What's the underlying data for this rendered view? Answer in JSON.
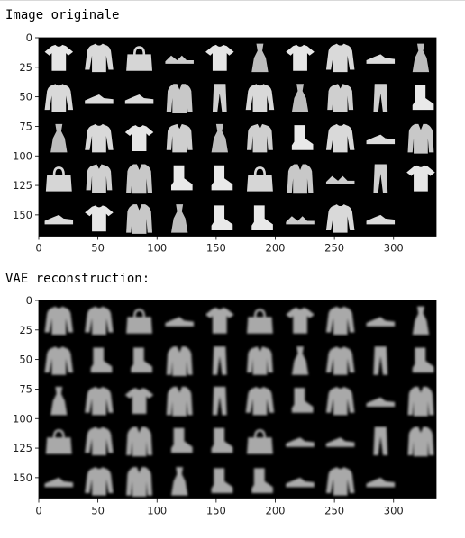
{
  "outputs": [
    {
      "caption": "Image originale",
      "x_ticks": [
        "0",
        "50",
        "100",
        "150",
        "200",
        "250",
        "300"
      ],
      "y_ticks": [
        "0",
        "25",
        "50",
        "75",
        "100",
        "125",
        "150"
      ],
      "grid": {
        "rows": [
          [
            "tshirt",
            "pullover",
            "bag",
            "sandal",
            "tshirt",
            "dress",
            "tshirt",
            "pullover",
            "sneaker",
            "dress"
          ],
          [
            "pullover",
            "sneaker",
            "sneaker",
            "coat",
            "trouser",
            "pullover",
            "dress",
            "shirt",
            "trouser",
            "boot"
          ],
          [
            "dress",
            "pullover",
            "tshirt",
            "shirt",
            "dress",
            "shirt",
            "boot",
            "pullover",
            "sneaker",
            "coat"
          ],
          [
            "bag",
            "shirt",
            "coat",
            "boot",
            "boot",
            "bag",
            "coat",
            "sandal",
            "trouser",
            "tshirt"
          ],
          [
            "sneaker",
            "tshirt",
            "coat",
            "dress",
            "boot",
            "boot",
            "sandal",
            "pullover",
            "sneaker",
            ""
          ]
        ]
      },
      "blur": false
    },
    {
      "caption": "VAE reconstruction:",
      "x_ticks": [
        "0",
        "50",
        "100",
        "150",
        "200",
        "250",
        "300"
      ],
      "y_ticks": [
        "0",
        "25",
        "50",
        "75",
        "100",
        "125",
        "150"
      ],
      "grid": {
        "rows": [
          [
            "pullover",
            "pullover",
            "bag",
            "sneaker",
            "tshirt",
            "bag",
            "tshirt",
            "pullover",
            "sneaker",
            "dress"
          ],
          [
            "pullover",
            "boot",
            "boot",
            "coat",
            "trouser",
            "shirt",
            "dress",
            "pullover",
            "trouser",
            "boot"
          ],
          [
            "dress",
            "pullover",
            "tshirt",
            "coat",
            "trouser",
            "pullover",
            "boot",
            "pullover",
            "sneaker",
            "coat"
          ],
          [
            "bag",
            "pullover",
            "coat",
            "boot",
            "boot",
            "bag",
            "sneaker",
            "sneaker",
            "trouser",
            "coat"
          ],
          [
            "sneaker",
            "pullover",
            "coat",
            "dress",
            "boot",
            "boot",
            "sneaker",
            "pullover",
            "sneaker",
            ""
          ]
        ]
      },
      "blur": true
    }
  ]
}
